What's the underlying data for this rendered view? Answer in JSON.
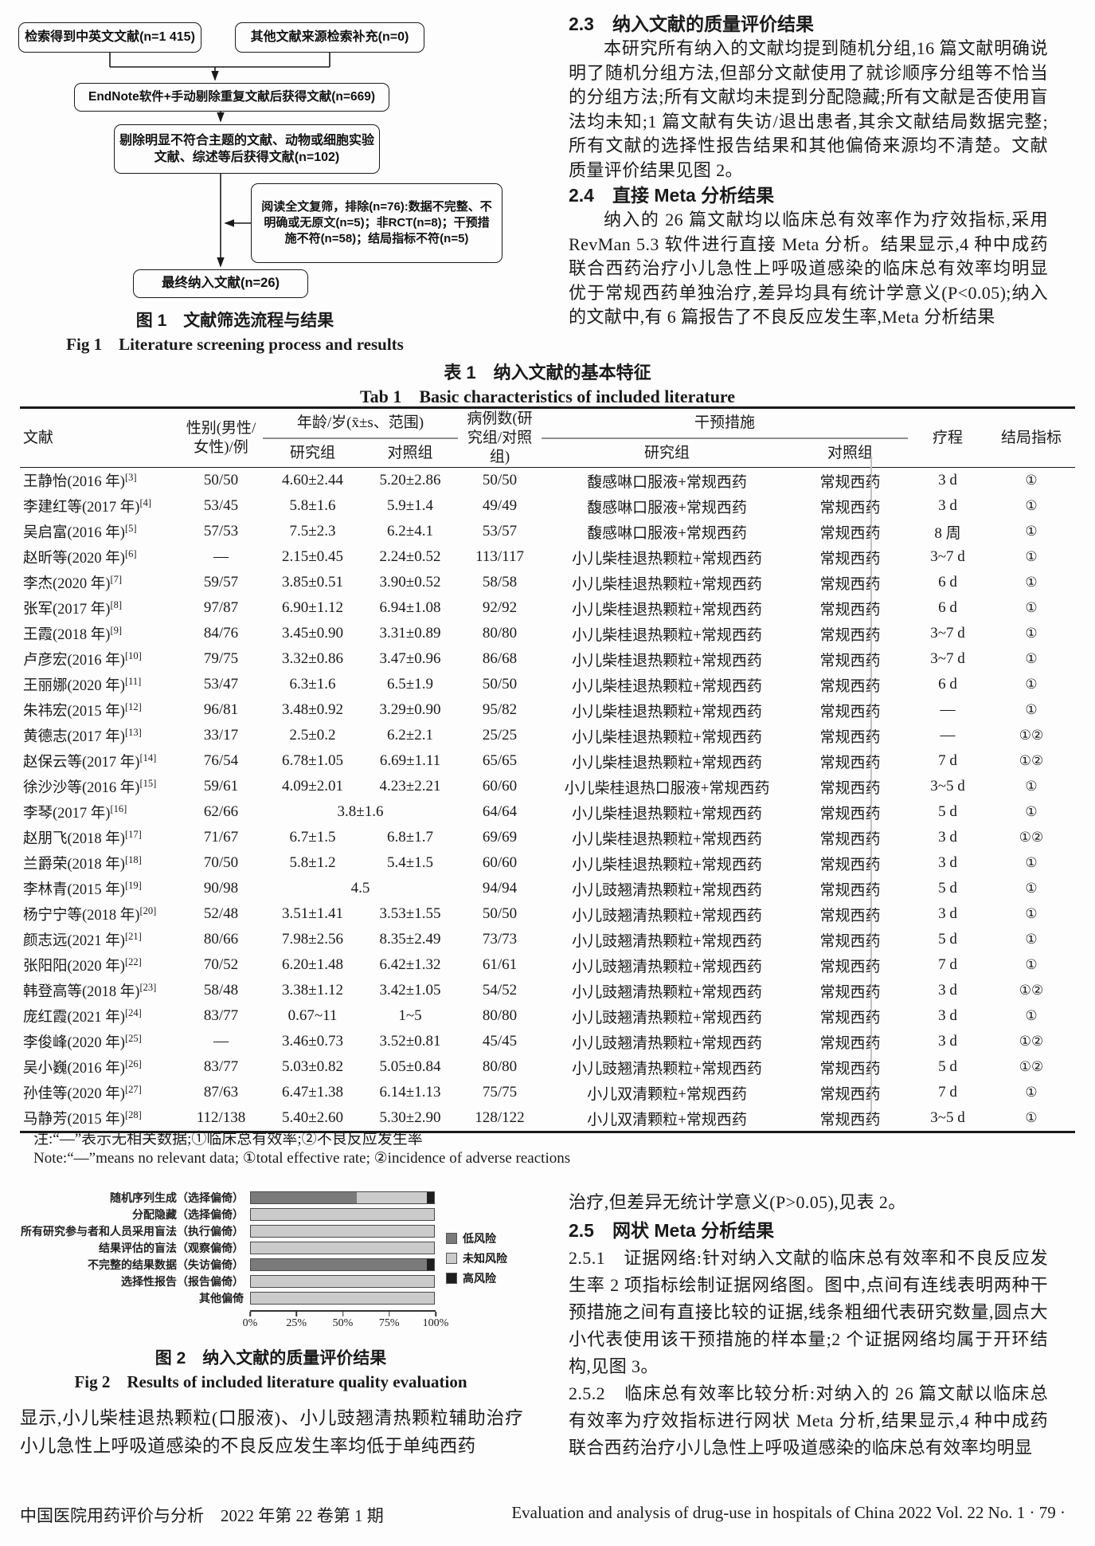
{
  "figure1": {
    "boxes": {
      "searched": "检索得到中英文文献(n=1 415)",
      "other_sources": "其他文献来源检索补充(n=0)",
      "dedup": "EndNote软件+手动剔除重复文献后获得文献(n=669)",
      "topic_screen": "剔除明显不符合主题的文献、动物或细胞实验文献、综述等后获得文献(n=102)",
      "fulltext_exclude": "阅读全文复筛，排除(n=76):数据不完整、不明确或无原文(n=5)；非RCT(n=8)；干预措施不符(n=58)；结局指标不符(n=5)",
      "final": "最终纳入文献(n=26)"
    },
    "caption_zh": "图 1　文献筛选流程与结果",
    "caption_en": "Fig 1　Literature screening process and results"
  },
  "section_2_3": {
    "heading": "2.3　纳入文献的质量评价结果",
    "body": "本研究所有纳入的文献均提到随机分组,16 篇文献明确说明了随机分组方法,但部分文献使用了就诊顺序分组等不恰当的分组方法;所有文献均未提到分配隐藏;所有文献是否使用盲法均未知;1 篇文献有失访/退出患者,其余文献结局数据完整;所有文献的选择性报告结果和其他偏倚来源均不清楚。文献质量评价结果见图 2。"
  },
  "section_2_4": {
    "heading": "2.4　直接 Meta 分析结果",
    "body": "纳入的 26 篇文献均以临床总有效率作为疗效指标,采用 RevMan 5.3 软件进行直接 Meta 分析。结果显示,4 种中成药联合西药治疗小儿急性上呼吸道感染的临床总有效率均明显优于常规西药单独治疗,差异均具有统计学意义(P<0.05);纳入的文献中,有 6 篇报告了不良反应发生率,Meta 分析结果"
  },
  "table1": {
    "title_zh": "表 1　纳入文献的基本特征",
    "title_en": "Tab 1　Basic characteristics of included literature",
    "headers": {
      "study": "文献",
      "gender": "性别(男性/女性)/例",
      "age_group": "年龄/岁(x̄±s、范围)",
      "cases": "病例数(研究组/对照组)",
      "intervention_group": "干预措施",
      "study_arm": "研究组",
      "control_arm": "对照组",
      "course": "疗程",
      "outcome": "结局指标"
    },
    "rows": [
      {
        "study": "王静怡(2016 年)",
        "ref": "[3]",
        "gender": "50/50",
        "age_study": "4.60±2.44",
        "age_control": "5.20±2.86",
        "age_merged": null,
        "cases": "50/50",
        "intervention": "馥感啉口服液+常规西药",
        "control": "常规西药",
        "course": "3 d",
        "outcome": "①"
      },
      {
        "study": "李建红等(2017 年)",
        "ref": "[4]",
        "gender": "53/45",
        "age_study": "5.8±1.6",
        "age_control": "5.9±1.4",
        "age_merged": null,
        "cases": "49/49",
        "intervention": "馥感啉口服液+常规西药",
        "control": "常规西药",
        "course": "3 d",
        "outcome": "①"
      },
      {
        "study": "吴启富(2016 年)",
        "ref": "[5]",
        "gender": "57/53",
        "age_study": "7.5±2.3",
        "age_control": "6.2±4.1",
        "age_merged": null,
        "cases": "53/57",
        "intervention": "馥感啉口服液+常规西药",
        "control": "常规西药",
        "course": "8 周",
        "outcome": "①"
      },
      {
        "study": "赵昕等(2020 年)",
        "ref": "[6]",
        "gender": "—",
        "age_study": "2.15±0.45",
        "age_control": "2.24±0.52",
        "age_merged": null,
        "cases": "113/117",
        "intervention": "小儿柴桂退热颗粒+常规西药",
        "control": "常规西药",
        "course": "3~7 d",
        "outcome": "①"
      },
      {
        "study": "李杰(2020 年)",
        "ref": "[7]",
        "gender": "59/57",
        "age_study": "3.85±0.51",
        "age_control": "3.90±0.52",
        "age_merged": null,
        "cases": "58/58",
        "intervention": "小儿柴桂退热颗粒+常规西药",
        "control": "常规西药",
        "course": "6 d",
        "outcome": "①"
      },
      {
        "study": "张军(2017 年)",
        "ref": "[8]",
        "gender": "97/87",
        "age_study": "6.90±1.12",
        "age_control": "6.94±1.08",
        "age_merged": null,
        "cases": "92/92",
        "intervention": "小儿柴桂退热颗粒+常规西药",
        "control": "常规西药",
        "course": "6 d",
        "outcome": "①"
      },
      {
        "study": "王霞(2018 年)",
        "ref": "[9]",
        "gender": "84/76",
        "age_study": "3.45±0.90",
        "age_control": "3.31±0.89",
        "age_merged": null,
        "cases": "80/80",
        "intervention": "小儿柴桂退热颗粒+常规西药",
        "control": "常规西药",
        "course": "3~7 d",
        "outcome": "①"
      },
      {
        "study": "卢彦宏(2016 年)",
        "ref": "[10]",
        "gender": "79/75",
        "age_study": "3.32±0.86",
        "age_control": "3.47±0.96",
        "age_merged": null,
        "cases": "86/68",
        "intervention": "小儿柴桂退热颗粒+常规西药",
        "control": "常规西药",
        "course": "3~7 d",
        "outcome": "①"
      },
      {
        "study": "王丽娜(2020 年)",
        "ref": "[11]",
        "gender": "53/47",
        "age_study": "6.3±1.6",
        "age_control": "6.5±1.9",
        "age_merged": null,
        "cases": "50/50",
        "intervention": "小儿柴桂退热颗粒+常规西药",
        "control": "常规西药",
        "course": "6 d",
        "outcome": "①"
      },
      {
        "study": "朱祎宏(2015 年)",
        "ref": "[12]",
        "gender": "96/81",
        "age_study": "3.48±0.92",
        "age_control": "3.29±0.90",
        "age_merged": null,
        "cases": "95/82",
        "intervention": "小儿柴桂退热颗粒+常规西药",
        "control": "常规西药",
        "course": "—",
        "outcome": "①"
      },
      {
        "study": "黄德志(2017 年)",
        "ref": "[13]",
        "gender": "33/17",
        "age_study": "2.5±0.2",
        "age_control": "6.2±2.1",
        "age_merged": null,
        "cases": "25/25",
        "intervention": "小儿柴桂退热颗粒+常规西药",
        "control": "常规西药",
        "course": "—",
        "outcome": "①②"
      },
      {
        "study": "赵保云等(2017 年)",
        "ref": "[14]",
        "gender": "76/54",
        "age_study": "6.78±1.05",
        "age_control": "6.69±1.11",
        "age_merged": null,
        "cases": "65/65",
        "intervention": "小儿柴桂退热颗粒+常规西药",
        "control": "常规西药",
        "course": "7 d",
        "outcome": "①②"
      },
      {
        "study": "徐沙沙等(2016 年)",
        "ref": "[15]",
        "gender": "59/61",
        "age_study": "4.09±2.01",
        "age_control": "4.23±2.21",
        "age_merged": null,
        "cases": "60/60",
        "intervention": "小儿柴桂退热口服液+常规西药",
        "control": "常规西药",
        "course": "3~5 d",
        "outcome": "①"
      },
      {
        "study": "李琴(2017 年)",
        "ref": "[16]",
        "gender": "62/66",
        "age_study": "",
        "age_control": "",
        "age_merged": "3.8±1.6",
        "cases": "64/64",
        "intervention": "小儿柴桂退热颗粒+常规西药",
        "control": "常规西药",
        "course": "5 d",
        "outcome": "①"
      },
      {
        "study": "赵朋飞(2018 年)",
        "ref": "[17]",
        "gender": "71/67",
        "age_study": "6.7±1.5",
        "age_control": "6.8±1.7",
        "age_merged": null,
        "cases": "69/69",
        "intervention": "小儿柴桂退热颗粒+常规西药",
        "control": "常规西药",
        "course": "3 d",
        "outcome": "①②"
      },
      {
        "study": "兰爵荣(2018 年)",
        "ref": "[18]",
        "gender": "70/50",
        "age_study": "5.8±1.2",
        "age_control": "5.4±1.5",
        "age_merged": null,
        "cases": "60/60",
        "intervention": "小儿柴桂退热颗粒+常规西药",
        "control": "常规西药",
        "course": "3 d",
        "outcome": "①"
      },
      {
        "study": "李林青(2015 年)",
        "ref": "[19]",
        "gender": "90/98",
        "age_study": "",
        "age_control": "",
        "age_merged": "4.5",
        "cases": "94/94",
        "intervention": "小儿豉翘清热颗粒+常规西药",
        "control": "常规西药",
        "course": "5 d",
        "outcome": "①"
      },
      {
        "study": "杨宁宁等(2018 年)",
        "ref": "[20]",
        "gender": "52/48",
        "age_study": "3.51±1.41",
        "age_control": "3.53±1.55",
        "age_merged": null,
        "cases": "50/50",
        "intervention": "小儿豉翘清热颗粒+常规西药",
        "control": "常规西药",
        "course": "3 d",
        "outcome": "①"
      },
      {
        "study": "颜志远(2021 年)",
        "ref": "[21]",
        "gender": "80/66",
        "age_study": "7.98±2.56",
        "age_control": "8.35±2.49",
        "age_merged": null,
        "cases": "73/73",
        "intervention": "小儿豉翘清热颗粒+常规西药",
        "control": "常规西药",
        "course": "5 d",
        "outcome": "①"
      },
      {
        "study": "张阳阳(2020 年)",
        "ref": "[22]",
        "gender": "70/52",
        "age_study": "6.20±1.48",
        "age_control": "6.42±1.32",
        "age_merged": null,
        "cases": "61/61",
        "intervention": "小儿豉翘清热颗粒+常规西药",
        "control": "常规西药",
        "course": "7 d",
        "outcome": "①"
      },
      {
        "study": "韩登高等(2018 年)",
        "ref": "[23]",
        "gender": "58/48",
        "age_study": "3.38±1.12",
        "age_control": "3.42±1.05",
        "age_merged": null,
        "cases": "54/52",
        "intervention": "小儿豉翘清热颗粒+常规西药",
        "control": "常规西药",
        "course": "3 d",
        "outcome": "①②"
      },
      {
        "study": "庞红霞(2021 年)",
        "ref": "[24]",
        "gender": "83/77",
        "age_study": "0.67~11",
        "age_control": "1~5",
        "age_merged": null,
        "cases": "80/80",
        "intervention": "小儿豉翘清热颗粒+常规西药",
        "control": "常规西药",
        "course": "3 d",
        "outcome": "①"
      },
      {
        "study": "李俊峰(2020 年)",
        "ref": "[25]",
        "gender": "—",
        "age_study": "3.46±0.73",
        "age_control": "3.52±0.81",
        "age_merged": null,
        "cases": "45/45",
        "intervention": "小儿豉翘清热颗粒+常规西药",
        "control": "常规西药",
        "course": "3 d",
        "outcome": "①②"
      },
      {
        "study": "吴小巍(2016 年)",
        "ref": "[26]",
        "gender": "83/77",
        "age_study": "5.03±0.82",
        "age_control": "5.05±0.84",
        "age_merged": null,
        "cases": "80/80",
        "intervention": "小儿豉翘清热颗粒+常规西药",
        "control": "常规西药",
        "course": "5 d",
        "outcome": "①②"
      },
      {
        "study": "孙佳等(2020 年)",
        "ref": "[27]",
        "gender": "87/63",
        "age_study": "6.47±1.38",
        "age_control": "6.14±1.13",
        "age_merged": null,
        "cases": "75/75",
        "intervention": "小儿双清颗粒+常规西药",
        "control": "常规西药",
        "course": "7 d",
        "outcome": "①"
      },
      {
        "study": "马静芳(2015 年)",
        "ref": "[28]",
        "gender": "112/138",
        "age_study": "5.40±2.60",
        "age_control": "5.30±2.90",
        "age_merged": null,
        "cases": "128/122",
        "intervention": "小儿双清颗粒+常规西药",
        "control": "常规西药",
        "course": "3~5 d",
        "outcome": "①"
      }
    ],
    "note_zh": "注:“—”表示无相关数据;①临床总有效率;②不良反应发生率",
    "note_en": "Note:“—”means no relevant data; ①total effective rate; ②incidence of adverse reactions"
  },
  "figure2": {
    "caption_zh": "图 2　纳入文献的质量评价结果",
    "caption_en": "Fig 2　Results of included literature quality evaluation",
    "chart_data": {
      "type": "bar",
      "subtype": "horizontal-stacked",
      "categories": [
        "随机序列生成（选择偏倚）",
        "分配隐藏（选择偏倚）",
        "所有研究参与者和人员采用盲法（执行偏倚）",
        "结果评估的盲法（观察偏倚）",
        "不完整的结果数据（失访偏倚）",
        "选择性报告（报告偏倚）",
        "其他偏倚"
      ],
      "series": [
        {
          "name": "低风险",
          "color": "#7a7a7a",
          "values": [
            58,
            0,
            0,
            0,
            96,
            0,
            0
          ]
        },
        {
          "name": "未知风险",
          "color": "#cbcbcb",
          "values": [
            38,
            100,
            100,
            100,
            0,
            100,
            100
          ]
        },
        {
          "name": "高风险",
          "color": "#1e1e1e",
          "values": [
            4,
            0,
            0,
            0,
            4,
            0,
            0
          ]
        }
      ],
      "x_ticks": [
        "0%",
        "25%",
        "50%",
        "75%",
        "100%"
      ],
      "xlim": [
        0,
        100
      ],
      "legend_position": "right",
      "grid": false
    }
  },
  "section_2_4_cont": "治疗,但差异无统计学意义(P>0.05),见表 2。",
  "section_2_5": {
    "heading": "2.5　网状 Meta 分析结果",
    "p251": "2.5.1　证据网络:针对纳入文献的临床总有效率和不良反应发生率 2 项指标绘制证据网络图。图中,点间有连线表明两种干预措施之间有直接比较的证据,线条粗细代表研究数量,圆点大小代表使用该干预措施的样本量;2 个证据网络均属于开环结构,见图 3。",
    "p252": "2.5.2　临床总有效率比较分析:对纳入的 26 篇文献以临床总有效率为疗效指标进行网状 Meta 分析,结果显示,4 种中成药联合西药治疗小儿急性上呼吸道感染的临床总有效率均明显"
  },
  "left_column_cont": "显示,小儿柴桂退热颗粒(口服液)、小儿豉翘清热颗粒辅助治疗小儿急性上呼吸道感染的不良反应发生率均低于单纯西药",
  "page": {
    "footer_left": "中国医院用药评价与分析　2022 年第 22 卷第 1 期",
    "footer_right": "Evaluation and analysis of drug-use in hospitals of China 2022 Vol. 22 No. 1 · 79 ·"
  }
}
